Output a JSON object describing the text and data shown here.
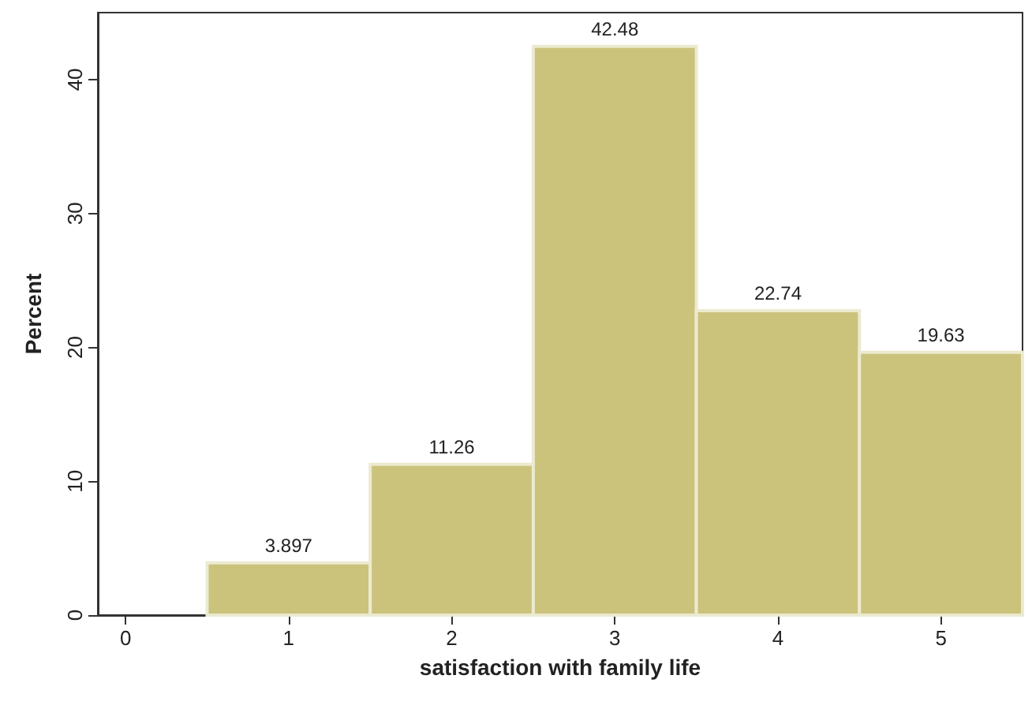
{
  "chart_data": {
    "type": "histogram",
    "xlabel": "satisfaction with family life",
    "ylabel": "Percent",
    "bins": [
      0.5,
      1.5,
      2.5,
      3.5,
      4.5,
      5.5
    ],
    "values": [
      3.897,
      11.26,
      42.48,
      22.74,
      19.63
    ],
    "color": "#cbc27c",
    "data_labels": true,
    "xlim": [
      -0.17,
      5.5
    ],
    "xticks": [
      0,
      1,
      2,
      3,
      4,
      5
    ],
    "ylim": [
      0,
      45
    ],
    "yticks": [
      0,
      10,
      20,
      30,
      40
    ],
    "grid": false
  }
}
